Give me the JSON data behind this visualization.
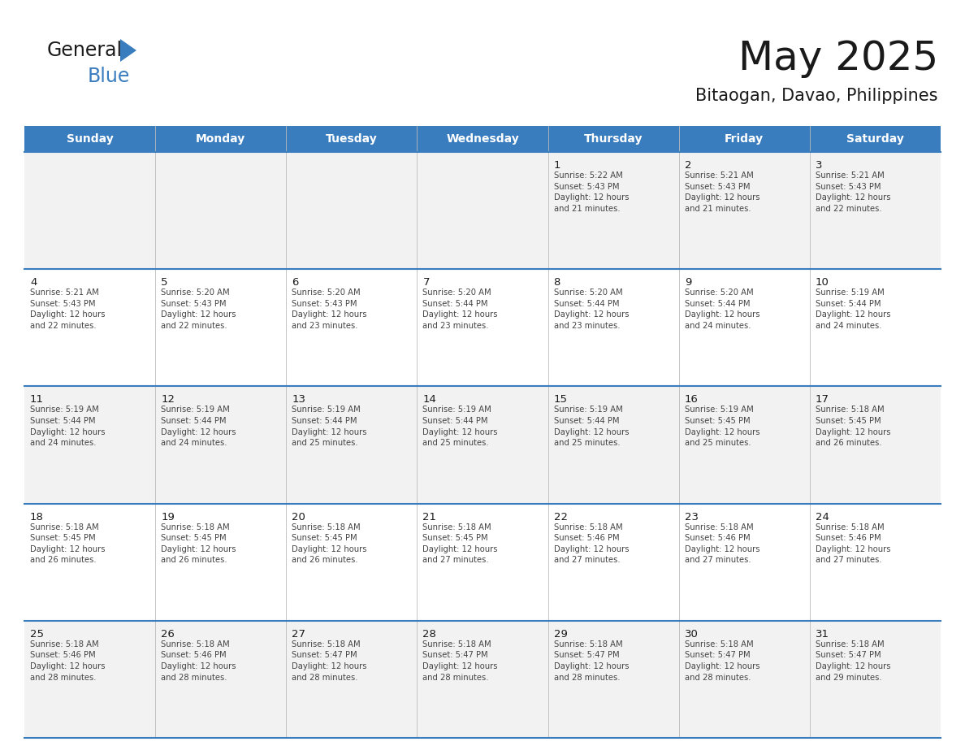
{
  "title": "May 2025",
  "subtitle": "Bitaogan, Davao, Philippines",
  "header_bg": "#3a7dbf",
  "header_text_color": "#ffffff",
  "days_of_week": [
    "Sunday",
    "Monday",
    "Tuesday",
    "Wednesday",
    "Thursday",
    "Friday",
    "Saturday"
  ],
  "row_bg_odd": "#f2f2f2",
  "row_bg_even": "#ffffff",
  "cell_text_color": "#444444",
  "day_number_color": "#1a1a1a",
  "grid_line_color": "#3a7dbf",
  "title_color": "#1a1a1a",
  "subtitle_color": "#333333",
  "logo_general_color": "#1a1a1a",
  "logo_blue_color": "#3a7dbf",
  "weeks": [
    [
      {
        "day": null,
        "info": null
      },
      {
        "day": null,
        "info": null
      },
      {
        "day": null,
        "info": null
      },
      {
        "day": null,
        "info": null
      },
      {
        "day": 1,
        "info": "Sunrise: 5:22 AM\nSunset: 5:43 PM\nDaylight: 12 hours\nand 21 minutes."
      },
      {
        "day": 2,
        "info": "Sunrise: 5:21 AM\nSunset: 5:43 PM\nDaylight: 12 hours\nand 21 minutes."
      },
      {
        "day": 3,
        "info": "Sunrise: 5:21 AM\nSunset: 5:43 PM\nDaylight: 12 hours\nand 22 minutes."
      }
    ],
    [
      {
        "day": 4,
        "info": "Sunrise: 5:21 AM\nSunset: 5:43 PM\nDaylight: 12 hours\nand 22 minutes."
      },
      {
        "day": 5,
        "info": "Sunrise: 5:20 AM\nSunset: 5:43 PM\nDaylight: 12 hours\nand 22 minutes."
      },
      {
        "day": 6,
        "info": "Sunrise: 5:20 AM\nSunset: 5:43 PM\nDaylight: 12 hours\nand 23 minutes."
      },
      {
        "day": 7,
        "info": "Sunrise: 5:20 AM\nSunset: 5:44 PM\nDaylight: 12 hours\nand 23 minutes."
      },
      {
        "day": 8,
        "info": "Sunrise: 5:20 AM\nSunset: 5:44 PM\nDaylight: 12 hours\nand 23 minutes."
      },
      {
        "day": 9,
        "info": "Sunrise: 5:20 AM\nSunset: 5:44 PM\nDaylight: 12 hours\nand 24 minutes."
      },
      {
        "day": 10,
        "info": "Sunrise: 5:19 AM\nSunset: 5:44 PM\nDaylight: 12 hours\nand 24 minutes."
      }
    ],
    [
      {
        "day": 11,
        "info": "Sunrise: 5:19 AM\nSunset: 5:44 PM\nDaylight: 12 hours\nand 24 minutes."
      },
      {
        "day": 12,
        "info": "Sunrise: 5:19 AM\nSunset: 5:44 PM\nDaylight: 12 hours\nand 24 minutes."
      },
      {
        "day": 13,
        "info": "Sunrise: 5:19 AM\nSunset: 5:44 PM\nDaylight: 12 hours\nand 25 minutes."
      },
      {
        "day": 14,
        "info": "Sunrise: 5:19 AM\nSunset: 5:44 PM\nDaylight: 12 hours\nand 25 minutes."
      },
      {
        "day": 15,
        "info": "Sunrise: 5:19 AM\nSunset: 5:44 PM\nDaylight: 12 hours\nand 25 minutes."
      },
      {
        "day": 16,
        "info": "Sunrise: 5:19 AM\nSunset: 5:45 PM\nDaylight: 12 hours\nand 25 minutes."
      },
      {
        "day": 17,
        "info": "Sunrise: 5:18 AM\nSunset: 5:45 PM\nDaylight: 12 hours\nand 26 minutes."
      }
    ],
    [
      {
        "day": 18,
        "info": "Sunrise: 5:18 AM\nSunset: 5:45 PM\nDaylight: 12 hours\nand 26 minutes."
      },
      {
        "day": 19,
        "info": "Sunrise: 5:18 AM\nSunset: 5:45 PM\nDaylight: 12 hours\nand 26 minutes."
      },
      {
        "day": 20,
        "info": "Sunrise: 5:18 AM\nSunset: 5:45 PM\nDaylight: 12 hours\nand 26 minutes."
      },
      {
        "day": 21,
        "info": "Sunrise: 5:18 AM\nSunset: 5:45 PM\nDaylight: 12 hours\nand 27 minutes."
      },
      {
        "day": 22,
        "info": "Sunrise: 5:18 AM\nSunset: 5:46 PM\nDaylight: 12 hours\nand 27 minutes."
      },
      {
        "day": 23,
        "info": "Sunrise: 5:18 AM\nSunset: 5:46 PM\nDaylight: 12 hours\nand 27 minutes."
      },
      {
        "day": 24,
        "info": "Sunrise: 5:18 AM\nSunset: 5:46 PM\nDaylight: 12 hours\nand 27 minutes."
      }
    ],
    [
      {
        "day": 25,
        "info": "Sunrise: 5:18 AM\nSunset: 5:46 PM\nDaylight: 12 hours\nand 28 minutes."
      },
      {
        "day": 26,
        "info": "Sunrise: 5:18 AM\nSunset: 5:46 PM\nDaylight: 12 hours\nand 28 minutes."
      },
      {
        "day": 27,
        "info": "Sunrise: 5:18 AM\nSunset: 5:47 PM\nDaylight: 12 hours\nand 28 minutes."
      },
      {
        "day": 28,
        "info": "Sunrise: 5:18 AM\nSunset: 5:47 PM\nDaylight: 12 hours\nand 28 minutes."
      },
      {
        "day": 29,
        "info": "Sunrise: 5:18 AM\nSunset: 5:47 PM\nDaylight: 12 hours\nand 28 minutes."
      },
      {
        "day": 30,
        "info": "Sunrise: 5:18 AM\nSunset: 5:47 PM\nDaylight: 12 hours\nand 28 minutes."
      },
      {
        "day": 31,
        "info": "Sunrise: 5:18 AM\nSunset: 5:47 PM\nDaylight: 12 hours\nand 29 minutes."
      }
    ]
  ]
}
